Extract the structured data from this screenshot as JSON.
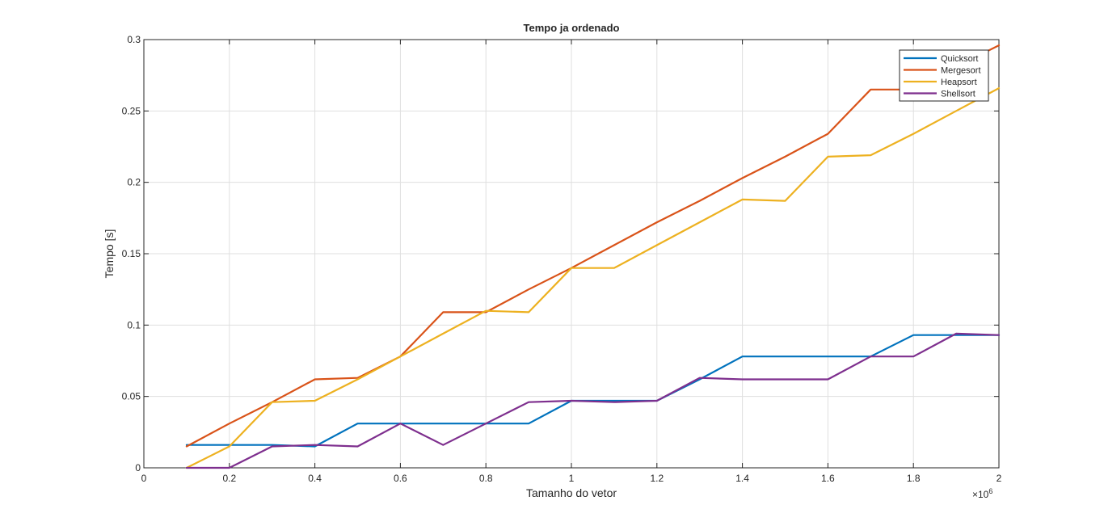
{
  "chart_data": {
    "type": "line",
    "title": "Tempo ja ordenado",
    "xlabel": "Tamanho do vetor",
    "ylabel": "Tempo [s]",
    "x_exponent_label": "×10",
    "x_exponent_power": "6",
    "xlim": [
      0,
      2000000
    ],
    "ylim": [
      0,
      0.3
    ],
    "x_ticks": [
      0,
      200000,
      400000,
      600000,
      800000,
      1000000,
      1200000,
      1400000,
      1600000,
      1800000,
      2000000
    ],
    "x_tick_labels": [
      "0",
      "0.2",
      "0.4",
      "0.6",
      "0.8",
      "1",
      "1.2",
      "1.4",
      "1.6",
      "1.8",
      "2"
    ],
    "y_ticks": [
      0,
      0.05,
      0.1,
      0.15,
      0.2,
      0.25,
      0.3
    ],
    "y_tick_labels": [
      "0",
      "0.05",
      "0.1",
      "0.15",
      "0.2",
      "0.25",
      "0.3"
    ],
    "grid": true,
    "legend_position": "top-right",
    "x": [
      100000,
      200000,
      300000,
      400000,
      500000,
      600000,
      700000,
      800000,
      900000,
      1000000,
      1100000,
      1200000,
      1300000,
      1400000,
      1500000,
      1600000,
      1700000,
      1800000,
      1900000,
      2000000
    ],
    "series": [
      {
        "name": "Quicksort",
        "color": "#0072bd",
        "values": [
          0.016,
          0.016,
          0.016,
          0.015,
          0.031,
          0.031,
          0.031,
          0.031,
          0.031,
          0.047,
          0.047,
          0.047,
          0.062,
          0.078,
          0.078,
          0.078,
          0.078,
          0.093,
          0.093,
          0.093
        ]
      },
      {
        "name": "Mergesort",
        "color": "#d95319",
        "values": [
          0.015,
          0.031,
          0.046,
          0.062,
          0.063,
          0.078,
          0.109,
          0.109,
          0.125,
          0.14,
          0.156,
          0.172,
          0.187,
          0.203,
          0.218,
          0.234,
          0.265,
          0.265,
          0.281,
          0.296
        ]
      },
      {
        "name": "Heapsort",
        "color": "#edb120",
        "values": [
          0.0,
          0.015,
          0.046,
          0.047,
          0.062,
          0.078,
          0.094,
          0.11,
          0.109,
          0.14,
          0.14,
          0.156,
          0.172,
          0.188,
          0.187,
          0.218,
          0.219,
          0.234,
          0.25,
          0.266
        ]
      },
      {
        "name": "Shellsort",
        "color": "#7e2f8e",
        "values": [
          0.0,
          0.0,
          0.015,
          0.016,
          0.015,
          0.031,
          0.016,
          0.031,
          0.046,
          0.047,
          0.046,
          0.047,
          0.063,
          0.062,
          0.062,
          0.062,
          0.078,
          0.078,
          0.094,
          0.093
        ]
      }
    ]
  }
}
